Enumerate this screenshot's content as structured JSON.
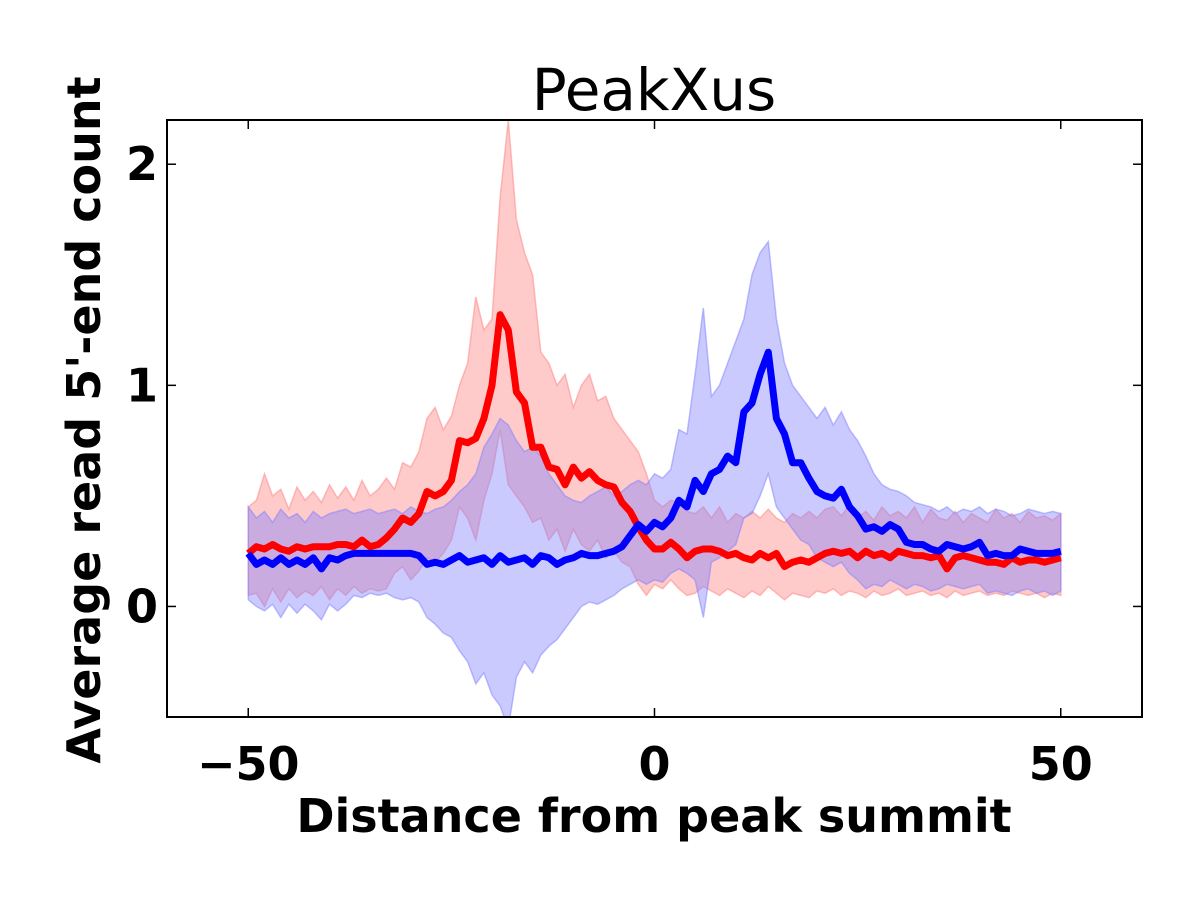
{
  "chart_data": {
    "type": "line",
    "title": "PeakXus",
    "xlabel": "Distance from peak summit",
    "ylabel": "Average read 5'-end count",
    "xlim": [
      -60,
      60
    ],
    "ylim": [
      -0.5,
      2.2
    ],
    "xticks": [
      -50,
      0,
      50
    ],
    "xtick_labels": [
      "−50",
      "0",
      "50"
    ],
    "yticks": [
      0,
      1,
      2
    ],
    "ytick_labels": [
      "0",
      "1",
      "2"
    ],
    "grid": false,
    "legend": "none",
    "x": [
      -50,
      -49,
      -48,
      -47,
      -46,
      -45,
      -44,
      -43,
      -42,
      -41,
      -40,
      -39,
      -38,
      -37,
      -36,
      -35,
      -34,
      -33,
      -32,
      -31,
      -30,
      -29,
      -28,
      -27,
      -26,
      -25,
      -24,
      -23,
      -22,
      -21,
      -20,
      -19,
      -18,
      -17,
      -16,
      -15,
      -14,
      -13,
      -12,
      -11,
      -10,
      -9,
      -8,
      -7,
      -6,
      -5,
      -4,
      -3,
      -2,
      -1,
      0,
      1,
      2,
      3,
      4,
      5,
      6,
      7,
      8,
      9,
      10,
      11,
      12,
      13,
      14,
      15,
      16,
      17,
      18,
      19,
      20,
      21,
      22,
      23,
      24,
      25,
      26,
      27,
      28,
      29,
      30,
      31,
      32,
      33,
      34,
      35,
      36,
      37,
      38,
      39,
      40,
      41,
      42,
      43,
      44,
      45,
      46,
      47,
      48,
      49,
      50
    ],
    "series": [
      {
        "color": "#ff0000",
        "band_color": "#ff8080",
        "values": [
          0.24,
          0.27,
          0.26,
          0.28,
          0.26,
          0.25,
          0.27,
          0.26,
          0.27,
          0.27,
          0.27,
          0.28,
          0.28,
          0.27,
          0.3,
          0.27,
          0.28,
          0.31,
          0.35,
          0.4,
          0.38,
          0.42,
          0.52,
          0.5,
          0.52,
          0.57,
          0.75,
          0.74,
          0.76,
          0.85,
          1.0,
          1.32,
          1.25,
          0.97,
          0.92,
          0.72,
          0.72,
          0.63,
          0.62,
          0.55,
          0.63,
          0.58,
          0.61,
          0.57,
          0.55,
          0.54,
          0.47,
          0.43,
          0.36,
          0.3,
          0.26,
          0.26,
          0.29,
          0.26,
          0.22,
          0.25,
          0.26,
          0.26,
          0.25,
          0.23,
          0.24,
          0.22,
          0.21,
          0.24,
          0.22,
          0.24,
          0.18,
          0.2,
          0.21,
          0.2,
          0.22,
          0.24,
          0.25,
          0.24,
          0.25,
          0.22,
          0.25,
          0.23,
          0.24,
          0.22,
          0.25,
          0.24,
          0.23,
          0.23,
          0.22,
          0.23,
          0.17,
          0.22,
          0.23,
          0.22,
          0.21,
          0.2,
          0.2,
          0.19,
          0.22,
          0.2,
          0.21,
          0.21,
          0.2,
          0.21,
          0.22
        ],
        "band_upper": [
          0.45,
          0.48,
          0.6,
          0.5,
          0.53,
          0.44,
          0.54,
          0.48,
          0.52,
          0.47,
          0.55,
          0.49,
          0.54,
          0.48,
          0.57,
          0.5,
          0.53,
          0.58,
          0.53,
          0.65,
          0.63,
          0.7,
          0.85,
          0.9,
          0.8,
          0.86,
          1.0,
          1.1,
          1.4,
          1.25,
          1.3,
          1.85,
          2.2,
          1.75,
          1.6,
          1.5,
          1.15,
          1.1,
          1.0,
          1.05,
          0.9,
          1.0,
          1.05,
          0.93,
          0.95,
          0.85,
          0.8,
          0.75,
          0.7,
          0.6,
          0.48,
          0.45,
          0.48,
          0.47,
          0.43,
          0.42,
          0.45,
          0.4,
          0.45,
          0.38,
          0.42,
          0.4,
          0.43,
          0.4,
          0.44,
          0.4,
          0.38,
          0.42,
          0.4,
          0.43,
          0.4,
          0.44,
          0.45,
          0.41,
          0.46,
          0.4,
          0.43,
          0.39,
          0.45,
          0.41,
          0.43,
          0.4,
          0.45,
          0.38,
          0.44,
          0.4,
          0.39,
          0.43,
          0.38,
          0.42,
          0.4,
          0.38,
          0.44,
          0.4,
          0.42,
          0.38,
          0.43,
          0.4,
          0.41,
          0.39,
          0.42
        ],
        "band_lower": [
          0.05,
          0.06,
          0.0,
          0.08,
          0.02,
          0.08,
          0.04,
          0.07,
          0.05,
          0.09,
          0.03,
          0.08,
          0.05,
          0.09,
          0.06,
          0.08,
          0.07,
          0.08,
          0.15,
          0.18,
          0.12,
          0.16,
          0.22,
          0.2,
          0.24,
          0.3,
          0.45,
          0.4,
          0.3,
          0.48,
          0.6,
          0.8,
          0.55,
          0.5,
          0.45,
          0.38,
          0.4,
          0.3,
          0.35,
          0.25,
          0.35,
          0.28,
          0.25,
          0.3,
          0.22,
          0.25,
          0.2,
          0.18,
          0.1,
          0.05,
          0.1,
          0.08,
          0.12,
          0.08,
          0.05,
          0.06,
          0.09,
          0.07,
          0.05,
          0.08,
          0.06,
          0.04,
          0.07,
          0.05,
          0.09,
          0.06,
          0.03,
          0.06,
          0.05,
          0.04,
          0.07,
          0.06,
          0.08,
          0.05,
          0.07,
          0.06,
          0.04,
          0.07,
          0.05,
          0.06,
          0.08,
          0.05,
          0.06,
          0.07,
          0.05,
          0.06,
          0.04,
          0.07,
          0.05,
          0.06,
          0.07,
          0.05,
          0.06,
          0.05,
          0.07,
          0.06,
          0.05,
          0.06,
          0.04,
          0.06,
          0.05
        ]
      },
      {
        "color": "#0000ff",
        "band_color": "#8080ff",
        "values": [
          0.24,
          0.19,
          0.21,
          0.19,
          0.22,
          0.19,
          0.21,
          0.19,
          0.22,
          0.17,
          0.22,
          0.21,
          0.23,
          0.24,
          0.24,
          0.24,
          0.24,
          0.24,
          0.24,
          0.24,
          0.24,
          0.23,
          0.19,
          0.2,
          0.19,
          0.21,
          0.23,
          0.2,
          0.21,
          0.22,
          0.19,
          0.23,
          0.2,
          0.21,
          0.22,
          0.19,
          0.23,
          0.22,
          0.19,
          0.21,
          0.22,
          0.24,
          0.23,
          0.23,
          0.24,
          0.25,
          0.27,
          0.32,
          0.37,
          0.34,
          0.38,
          0.36,
          0.4,
          0.48,
          0.45,
          0.57,
          0.52,
          0.6,
          0.62,
          0.68,
          0.65,
          0.88,
          0.92,
          1.05,
          1.15,
          0.85,
          0.78,
          0.65,
          0.65,
          0.58,
          0.52,
          0.5,
          0.49,
          0.53,
          0.45,
          0.41,
          0.35,
          0.36,
          0.34,
          0.37,
          0.35,
          0.29,
          0.28,
          0.28,
          0.26,
          0.25,
          0.28,
          0.27,
          0.26,
          0.27,
          0.29,
          0.23,
          0.24,
          0.23,
          0.23,
          0.26,
          0.25,
          0.24,
          0.24,
          0.24,
          0.25
        ],
        "band_upper": [
          0.45,
          0.4,
          0.43,
          0.38,
          0.44,
          0.4,
          0.42,
          0.38,
          0.43,
          0.4,
          0.42,
          0.43,
          0.44,
          0.42,
          0.43,
          0.44,
          0.42,
          0.43,
          0.44,
          0.42,
          0.45,
          0.43,
          0.42,
          0.44,
          0.45,
          0.48,
          0.52,
          0.55,
          0.6,
          0.72,
          0.78,
          0.85,
          0.82,
          0.75,
          0.7,
          0.72,
          0.68,
          0.6,
          0.55,
          0.5,
          0.48,
          0.47,
          0.5,
          0.52,
          0.54,
          0.5,
          0.52,
          0.55,
          0.57,
          0.55,
          0.6,
          0.58,
          0.62,
          0.8,
          0.78,
          1.05,
          1.35,
          0.95,
          1.0,
          1.1,
          1.2,
          1.3,
          1.5,
          1.6,
          1.65,
          1.3,
          1.1,
          1.0,
          0.95,
          0.9,
          0.85,
          0.9,
          0.82,
          0.88,
          0.8,
          0.75,
          0.68,
          0.6,
          0.55,
          0.53,
          0.52,
          0.5,
          0.47,
          0.46,
          0.45,
          0.43,
          0.45,
          0.42,
          0.44,
          0.43,
          0.45,
          0.42,
          0.44,
          0.43,
          0.41,
          0.42,
          0.44,
          0.43,
          0.42,
          0.43,
          0.42
        ],
        "band_lower": [
          0.03,
          0.0,
          -0.02,
          0.01,
          -0.05,
          0.01,
          -0.03,
          0.01,
          -0.02,
          -0.06,
          0.01,
          -0.02,
          0.01,
          0.05,
          0.04,
          0.06,
          0.05,
          0.06,
          0.04,
          0.03,
          0.04,
          0.02,
          -0.05,
          -0.08,
          -0.12,
          -0.14,
          -0.2,
          -0.25,
          -0.35,
          -0.3,
          -0.4,
          -0.45,
          -0.55,
          -0.32,
          -0.25,
          -0.3,
          -0.22,
          -0.18,
          -0.15,
          -0.1,
          -0.05,
          0.0,
          0.02,
          0.01,
          0.03,
          0.05,
          0.08,
          0.1,
          0.12,
          0.1,
          0.12,
          0.11,
          0.15,
          0.17,
          0.15,
          0.12,
          -0.05,
          0.2,
          0.22,
          0.25,
          0.28,
          0.4,
          0.42,
          0.5,
          0.6,
          0.45,
          0.4,
          0.35,
          0.3,
          0.28,
          0.22,
          0.2,
          0.18,
          0.2,
          0.15,
          0.12,
          0.08,
          0.1,
          0.09,
          0.12,
          0.1,
          0.08,
          0.1,
          0.09,
          0.07,
          0.08,
          0.1,
          0.09,
          0.08,
          0.09,
          0.1,
          0.06,
          0.07,
          0.06,
          0.05,
          0.07,
          0.08,
          0.06,
          0.07,
          0.05,
          0.07
        ]
      }
    ]
  }
}
